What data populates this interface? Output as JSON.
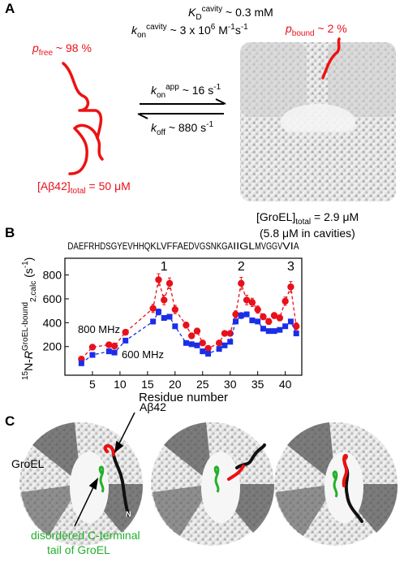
{
  "panel_a": {
    "label": "A",
    "kd": [
      [
        "K",
        "italic"
      ],
      [
        "D",
        "sub"
      ],
      [
        "cavity",
        "sup"
      ],
      [
        " ~ 0.3 mM",
        "normal"
      ]
    ],
    "kon_cavity": [
      [
        "k",
        "italic"
      ],
      [
        "on",
        "sub"
      ],
      [
        "cavity",
        "sup"
      ],
      [
        " ~ 3 x 10",
        "normal"
      ],
      [
        "6",
        "sup"
      ],
      [
        " M",
        "normal"
      ],
      [
        "-1",
        "sup"
      ],
      [
        "s",
        "normal"
      ],
      [
        "-1",
        "sup"
      ]
    ],
    "p_free": [
      [
        "p",
        "italic"
      ],
      [
        "free",
        "sub"
      ],
      [
        " ~ 98 %",
        "normal"
      ]
    ],
    "p_bound": [
      [
        "p",
        "italic"
      ],
      [
        "bound",
        "sub"
      ],
      [
        " ~ 2 %",
        "normal"
      ]
    ],
    "kon_app": [
      [
        "k",
        "italic"
      ],
      [
        "on",
        "sub"
      ],
      [
        "app",
        "sup"
      ],
      [
        " ~ 16 s",
        "normal"
      ],
      [
        "-1",
        "sup"
      ]
    ],
    "koff": [
      [
        "k",
        "italic"
      ],
      [
        "off",
        "sub"
      ],
      [
        " ~ 880 s",
        "normal"
      ],
      [
        "-1",
        "sup"
      ]
    ],
    "abeta_total": [
      [
        "[Aβ42]",
        "normal"
      ],
      [
        "total",
        "sub"
      ],
      [
        " = 50 μM",
        "normal"
      ]
    ],
    "groel_total": [
      [
        "[GroEL]",
        "normal"
      ],
      [
        "total",
        "sub"
      ],
      [
        " = 2.9 μM",
        "normal"
      ]
    ],
    "groel_cavities": "(5.8 μM in cavities)"
  },
  "chart_data": {
    "type": "line",
    "panel_label": "B",
    "sequence": [
      {
        "text": "DAEFRHDSGYEVHHQ",
        "color": "#000000"
      },
      {
        "text": "KLVFFA",
        "color": "#e020d0"
      },
      {
        "text": "EDVGSNKGA",
        "color": "#000000"
      },
      {
        "text": "IIGL",
        "color": "#e020d0"
      },
      {
        "text": "MVGGV",
        "color": "#000000"
      },
      {
        "text": "VI",
        "color": "#e020d0"
      },
      {
        "text": "A",
        "color": "#000000"
      }
    ],
    "annotations": [
      {
        "text": "1",
        "x": 18
      },
      {
        "text": "2",
        "x": 32
      },
      {
        "text": "3",
        "x": 41
      }
    ],
    "x_label": "Residue number",
    "y_label": [
      [
        "15",
        "sup"
      ],
      [
        "N-",
        "normal"
      ],
      [
        "R",
        "italic"
      ],
      [
        "GroEL-bound",
        "sup"
      ],
      [
        "2,calc",
        "sub"
      ],
      [
        " (s",
        "normal"
      ],
      [
        "-1",
        "sup"
      ],
      [
        ")",
        "normal"
      ]
    ],
    "x": [
      3,
      5,
      8,
      9,
      11,
      16,
      17,
      18,
      19,
      20,
      22,
      23,
      24,
      25,
      26,
      28,
      29,
      30,
      31,
      32,
      33,
      34,
      35,
      36,
      37,
      38,
      39,
      40,
      41,
      42
    ],
    "series": [
      {
        "name": "800 MHz",
        "color": "#e8101a",
        "marker": "circle",
        "values": [
          95,
          195,
          215,
          205,
          320,
          520,
          760,
          590,
          730,
          510,
          380,
          290,
          330,
          230,
          185,
          230,
          310,
          310,
          470,
          730,
          590,
          570,
          510,
          450,
          410,
          460,
          440,
          580,
          700,
          370
        ],
        "errors": [
          15,
          15,
          15,
          15,
          20,
          35,
          50,
          40,
          45,
          35,
          25,
          20,
          20,
          15,
          15,
          15,
          20,
          20,
          30,
          50,
          40,
          35,
          30,
          25,
          25,
          25,
          25,
          35,
          45,
          30
        ]
      },
      {
        "name": "600 MHz",
        "color": "#1a2ee8",
        "marker": "square",
        "values": [
          60,
          130,
          160,
          150,
          250,
          410,
          490,
          440,
          450,
          370,
          230,
          220,
          210,
          160,
          140,
          180,
          210,
          240,
          410,
          460,
          470,
          420,
          410,
          350,
          330,
          330,
          340,
          370,
          410,
          310
        ],
        "errors": [
          10,
          12,
          12,
          12,
          15,
          20,
          25,
          20,
          20,
          18,
          15,
          15,
          15,
          12,
          12,
          12,
          15,
          15,
          18,
          25,
          20,
          20,
          18,
          15,
          15,
          15,
          15,
          18,
          20,
          15
        ]
      }
    ],
    "xlim": [
      0,
      43
    ],
    "ylim": [
      -40,
      940
    ],
    "xticks": [
      5,
      10,
      15,
      20,
      25,
      30,
      35,
      40
    ],
    "yticks": [
      200,
      400,
      600,
      800
    ]
  },
  "panel_c": {
    "label": "C",
    "abeta": "Aβ42",
    "groel": "GroEL",
    "n_term": "N",
    "tail_line1": "disordered C-terminal",
    "tail_line2": "tail of GroEL"
  }
}
